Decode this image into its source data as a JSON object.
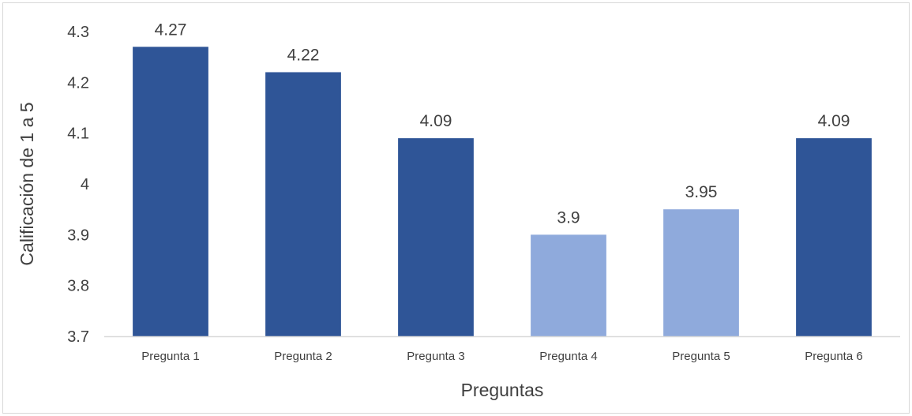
{
  "chart_data": {
    "type": "bar",
    "categories": [
      "Pregunta 1",
      "Pregunta 2",
      "Pregunta 3",
      "Pregunta 4",
      "Pregunta 5",
      "Pregunta 6"
    ],
    "values": [
      4.27,
      4.22,
      4.09,
      3.9,
      3.95,
      4.09
    ],
    "data_labels": [
      "4.27",
      "4.22",
      "4.09",
      "3.9",
      "3.95",
      "4.09"
    ],
    "bar_colors": [
      "#2f5597",
      "#2f5597",
      "#2f5597",
      "#8faadc",
      "#8faadc",
      "#2f5597"
    ],
    "title": "",
    "xlabel": "Preguntas",
    "ylabel": "Calificación de 1 a 5",
    "ylim": [
      3.7,
      4.3
    ],
    "yticks": [
      3.7,
      3.8,
      3.9,
      4.0,
      4.1,
      4.2,
      4.3
    ],
    "ytick_labels": [
      "3.7",
      "3.8",
      "3.9",
      "4",
      "4.1",
      "4.2",
      "4.3"
    ],
    "grid": false,
    "legend": "none"
  },
  "colors": {
    "axis_line": "#d9d9d9",
    "text": "#404040",
    "border": "#d9d9d9"
  }
}
